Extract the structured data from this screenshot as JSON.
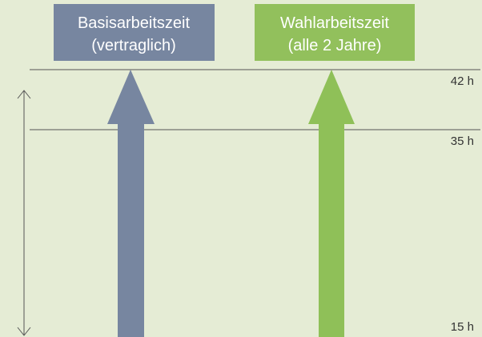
{
  "boxes": [
    {
      "lines": [
        "Basisarbeitszeit",
        "(vertraglich)"
      ]
    },
    {
      "lines": [
        "Wahlarbeitszeit",
        "(alle 2 Jahre)"
      ]
    }
  ],
  "levels": [
    "42 h",
    "35 h",
    "15 h"
  ]
}
